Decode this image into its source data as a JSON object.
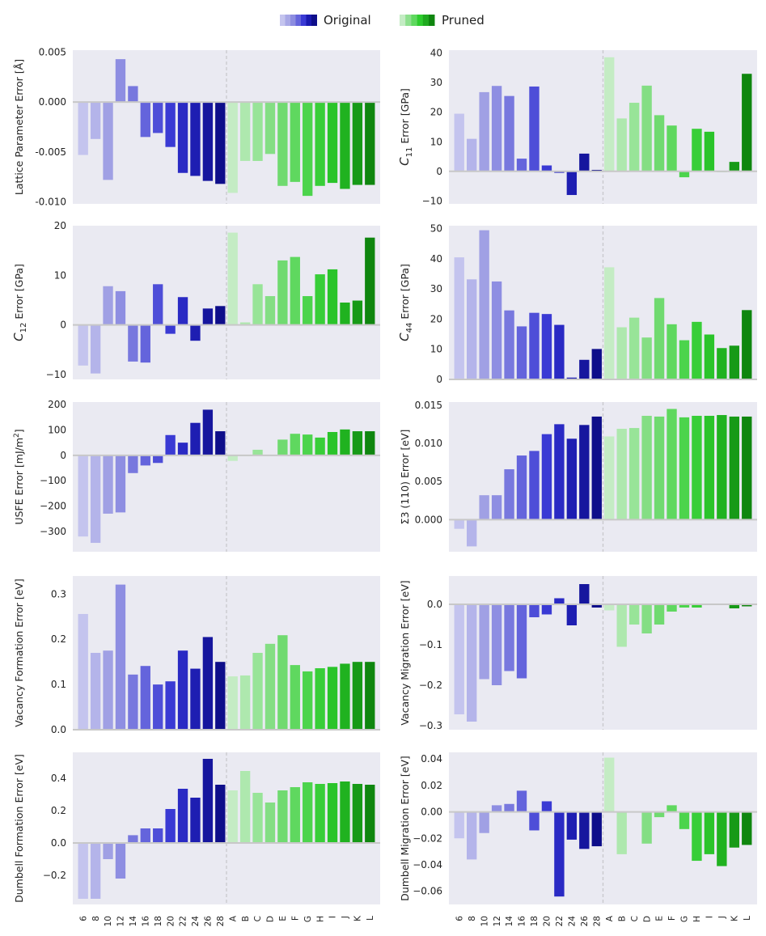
{
  "legend": {
    "original_label": "Original",
    "pruned_label": "Pruned",
    "original_colors": [
      "#c4c4ee",
      "#a8a8e6",
      "#8c8ce0",
      "#6464dc",
      "#3a3ad4",
      "#1a1ab0",
      "#0e0e8a"
    ],
    "pruned_colors": [
      "#c4ecc4",
      "#8ee08e",
      "#5fd85f",
      "#2ecc2e",
      "#1faa1f",
      "#0f860f"
    ]
  },
  "chart_data": [
    {
      "type": "bar",
      "ylabel": "Lattice Parameter Error [Å]",
      "ylim": [
        -0.0102,
        0.0052
      ],
      "ticks": [
        0.005,
        0.0,
        -0.005,
        -0.01
      ],
      "tick_labels": [
        "0.005",
        "0.000",
        "-0.005",
        "-0.010"
      ],
      "original_categories": [
        "6",
        "8",
        "10",
        "12",
        "14",
        "16",
        "18",
        "20",
        "22",
        "24",
        "26",
        "28"
      ],
      "original_values": [
        -0.0053,
        -0.0037,
        -0.0078,
        0.0043,
        0.0016,
        -0.0035,
        -0.0031,
        -0.0045,
        -0.0071,
        -0.0074,
        -0.0079,
        -0.0082
      ],
      "pruned_categories": [
        "A",
        "B",
        "C",
        "D",
        "E",
        "F",
        "G",
        "H",
        "I",
        "J",
        "K",
        "L"
      ],
      "pruned_values": [
        -0.0091,
        -0.0059,
        -0.0059,
        -0.0052,
        -0.0084,
        -0.008,
        -0.0094,
        -0.0084,
        -0.0081,
        -0.0087,
        -0.0083,
        -0.0083
      ]
    },
    {
      "type": "bar",
      "ylabel_prefix": "C",
      "ylabel_sub": "11",
      "ylabel_suffix": " Error [GPa]",
      "ylim": [
        -11,
        41
      ],
      "ticks": [
        40,
        30,
        20,
        10,
        0,
        -10
      ],
      "tick_labels": [
        "40",
        "30",
        "20",
        "10",
        "0",
        "−10"
      ],
      "original_categories": [
        "6",
        "8",
        "10",
        "12",
        "14",
        "16",
        "18",
        "20",
        "22",
        "24",
        "26",
        "28"
      ],
      "original_values": [
        19.5,
        11.0,
        26.8,
        28.9,
        25.5,
        4.3,
        28.7,
        2.0,
        -0.5,
        -8.0,
        6.0,
        0.5
      ],
      "pruned_categories": [
        "A",
        "B",
        "C",
        "D",
        "E",
        "F",
        "G",
        "H",
        "I",
        "J",
        "K",
        "L"
      ],
      "pruned_values": [
        38.6,
        17.9,
        23.2,
        29.0,
        19.0,
        15.5,
        -2.0,
        14.4,
        13.4,
        0.0,
        3.2,
        33.0
      ]
    },
    {
      "type": "bar",
      "ylabel_prefix": "C",
      "ylabel_sub": "12",
      "ylabel_suffix": " Error [GPa]",
      "ylim": [
        -11,
        20
      ],
      "ticks": [
        20,
        10,
        0,
        -10
      ],
      "tick_labels": [
        "20",
        "10",
        "0",
        "−10"
      ],
      "original_categories": [
        "6",
        "8",
        "10",
        "12",
        "14",
        "16",
        "18",
        "20",
        "22",
        "24",
        "26",
        "28"
      ],
      "original_values": [
        -8.2,
        -9.8,
        7.8,
        6.8,
        -7.4,
        -7.6,
        8.2,
        -1.8,
        5.6,
        -3.2,
        3.3,
        3.8
      ],
      "pruned_categories": [
        "A",
        "B",
        "C",
        "D",
        "E",
        "F",
        "G",
        "H",
        "I",
        "J",
        "K",
        "L"
      ],
      "pruned_values": [
        18.6,
        0.5,
        8.2,
        5.8,
        13.0,
        13.7,
        5.8,
        10.2,
        11.2,
        4.5,
        4.9,
        17.6
      ]
    },
    {
      "type": "bar",
      "ylabel_prefix": "C",
      "ylabel_sub": "44",
      "ylabel_suffix": " Error [GPa]",
      "ylim": [
        0,
        51
      ],
      "ticks": [
        50,
        40,
        30,
        20,
        10,
        0
      ],
      "tick_labels": [
        "50",
        "40",
        "30",
        "20",
        "10",
        "0"
      ],
      "original_categories": [
        "6",
        "8",
        "10",
        "12",
        "14",
        "16",
        "18",
        "20",
        "22",
        "24",
        "26",
        "28"
      ],
      "original_values": [
        40.5,
        33.2,
        49.5,
        32.5,
        22.9,
        17.6,
        22.1,
        21.7,
        18.1,
        0.6,
        6.5,
        10.1
      ],
      "pruned_categories": [
        "A",
        "B",
        "C",
        "D",
        "E",
        "F",
        "G",
        "H",
        "I",
        "J",
        "K",
        "L"
      ],
      "pruned_values": [
        37.2,
        17.3,
        20.5,
        13.9,
        27.0,
        18.3,
        13.0,
        19.1,
        14.9,
        10.4,
        11.2,
        23.0
      ]
    },
    {
      "type": "bar",
      "ylabel_prefix": "USFE Error [mJ/m",
      "ylabel_sup": "2",
      "ylabel_suffix": "]",
      "ylim": [
        -380,
        210
      ],
      "ticks": [
        200,
        100,
        0,
        -100,
        -200,
        -300
      ],
      "tick_labels": [
        "200",
        "100",
        "0",
        "−100",
        "−200",
        "−300"
      ],
      "original_categories": [
        "6",
        "8",
        "10",
        "12",
        "14",
        "16",
        "18",
        "20",
        "22",
        "24",
        "26",
        "28"
      ],
      "original_values": [
        -320,
        -345,
        -230,
        -225,
        -70,
        -40,
        -30,
        80,
        50,
        128,
        180,
        95
      ],
      "pruned_categories": [
        "A",
        "B",
        "C",
        "D",
        "E",
        "F",
        "G",
        "H",
        "I",
        "J",
        "K",
        "L"
      ],
      "pruned_values": [
        -22,
        0,
        22,
        2,
        62,
        85,
        82,
        70,
        92,
        102,
        95,
        95
      ]
    },
    {
      "type": "bar",
      "ylabel": "Σ3 (110) Error [eV]",
      "ylim": [
        -0.0042,
        0.0154
      ],
      "ticks": [
        0.015,
        0.01,
        0.005,
        0.0
      ],
      "tick_labels": [
        "0.015",
        "0.010",
        "0.005",
        "0.000"
      ],
      "original_categories": [
        "6",
        "8",
        "10",
        "12",
        "14",
        "16",
        "18",
        "20",
        "22",
        "24",
        "26",
        "28"
      ],
      "original_values": [
        -0.0012,
        -0.0035,
        0.0032,
        0.0032,
        0.0066,
        0.0084,
        0.009,
        0.0112,
        0.0125,
        0.0106,
        0.0124,
        0.0135
      ],
      "pruned_categories": [
        "A",
        "B",
        "C",
        "D",
        "E",
        "F",
        "G",
        "H",
        "I",
        "J",
        "K",
        "L"
      ],
      "pruned_values": [
        0.0109,
        0.0119,
        0.012,
        0.0136,
        0.0135,
        0.0145,
        0.0134,
        0.0136,
        0.0136,
        0.0137,
        0.0135,
        0.0135
      ]
    },
    {
      "type": "bar",
      "ylabel": "Vacancy Formation Error [eV]",
      "ylim": [
        0,
        0.34
      ],
      "ticks": [
        0.3,
        0.2,
        0.1,
        0.0
      ],
      "tick_labels": [
        "0.3",
        "0.2",
        "0.1",
        "0.0"
      ],
      "original_categories": [
        "6",
        "8",
        "10",
        "12",
        "14",
        "16",
        "18",
        "20",
        "22",
        "24",
        "26",
        "28"
      ],
      "original_values": [
        0.256,
        0.17,
        0.175,
        0.321,
        0.122,
        0.141,
        0.1,
        0.107,
        0.175,
        0.135,
        0.205,
        0.15
      ],
      "pruned_categories": [
        "A",
        "B",
        "C",
        "D",
        "E",
        "F",
        "G",
        "H",
        "I",
        "J",
        "K",
        "L"
      ],
      "pruned_values": [
        0.118,
        0.12,
        0.17,
        0.19,
        0.209,
        0.143,
        0.129,
        0.136,
        0.139,
        0.146,
        0.15,
        0.15
      ]
    },
    {
      "type": "bar",
      "ylabel": "Vacancy Migration Error [eV]",
      "ylim": [
        -0.31,
        0.07
      ],
      "ticks": [
        0.0,
        -0.1,
        -0.2,
        -0.3
      ],
      "tick_labels": [
        "0.0",
        "−0.1",
        "−0.2",
        "−0.3"
      ],
      "original_categories": [
        "6",
        "8",
        "10",
        "12",
        "14",
        "16",
        "18",
        "20",
        "22",
        "24",
        "26",
        "28"
      ],
      "original_values": [
        -0.272,
        -0.29,
        -0.185,
        -0.2,
        -0.165,
        -0.183,
        -0.032,
        -0.025,
        0.015,
        -0.052,
        0.05,
        -0.008
      ],
      "pruned_categories": [
        "A",
        "B",
        "C",
        "D",
        "E",
        "F",
        "G",
        "H",
        "I",
        "J",
        "K",
        "L"
      ],
      "pruned_values": [
        -0.015,
        -0.105,
        -0.05,
        -0.072,
        -0.05,
        -0.018,
        -0.008,
        -0.008,
        0.0,
        0.0,
        -0.01,
        -0.005
      ]
    },
    {
      "type": "bar",
      "ylabel": "Dumbell Formation Error [eV]",
      "ylim": [
        -0.38,
        0.56
      ],
      "ticks": [
        0.4,
        0.2,
        0.0,
        -0.2
      ],
      "tick_labels": [
        "0.4",
        "0.2",
        "0.0",
        "−0.2"
      ],
      "original_categories": [
        "6",
        "8",
        "10",
        "12",
        "14",
        "16",
        "18",
        "20",
        "22",
        "24",
        "26",
        "28"
      ],
      "original_values": [
        -0.345,
        -0.345,
        -0.1,
        -0.22,
        0.048,
        0.09,
        0.09,
        0.21,
        0.335,
        0.28,
        0.52,
        0.36
      ],
      "pruned_categories": [
        "A",
        "B",
        "C",
        "D",
        "E",
        "F",
        "G",
        "H",
        "I",
        "J",
        "K",
        "L"
      ],
      "pruned_values": [
        0.325,
        0.445,
        0.31,
        0.25,
        0.325,
        0.345,
        0.375,
        0.365,
        0.37,
        0.38,
        0.365,
        0.36
      ]
    },
    {
      "type": "bar",
      "ylabel": "Dumbell Migration Error [eV]",
      "ylim": [
        -0.07,
        0.045
      ],
      "ticks": [
        0.04,
        0.02,
        0.0,
        -0.02,
        -0.04,
        -0.06
      ],
      "tick_labels": [
        "0.04",
        "0.02",
        "0.00",
        "−0.02",
        "−0.04",
        "−0.06"
      ],
      "original_categories": [
        "6",
        "8",
        "10",
        "12",
        "14",
        "16",
        "18",
        "20",
        "22",
        "24",
        "26",
        "28"
      ],
      "original_values": [
        -0.02,
        -0.036,
        -0.016,
        0.005,
        0.006,
        0.016,
        -0.014,
        0.008,
        -0.064,
        -0.021,
        -0.028,
        -0.026
      ],
      "pruned_categories": [
        "A",
        "B",
        "C",
        "D",
        "E",
        "F",
        "G",
        "H",
        "I",
        "J",
        "K",
        "L"
      ],
      "pruned_values": [
        0.041,
        -0.032,
        0.0,
        -0.024,
        -0.004,
        0.005,
        -0.013,
        -0.037,
        -0.032,
        -0.041,
        -0.027,
        -0.025
      ]
    }
  ]
}
